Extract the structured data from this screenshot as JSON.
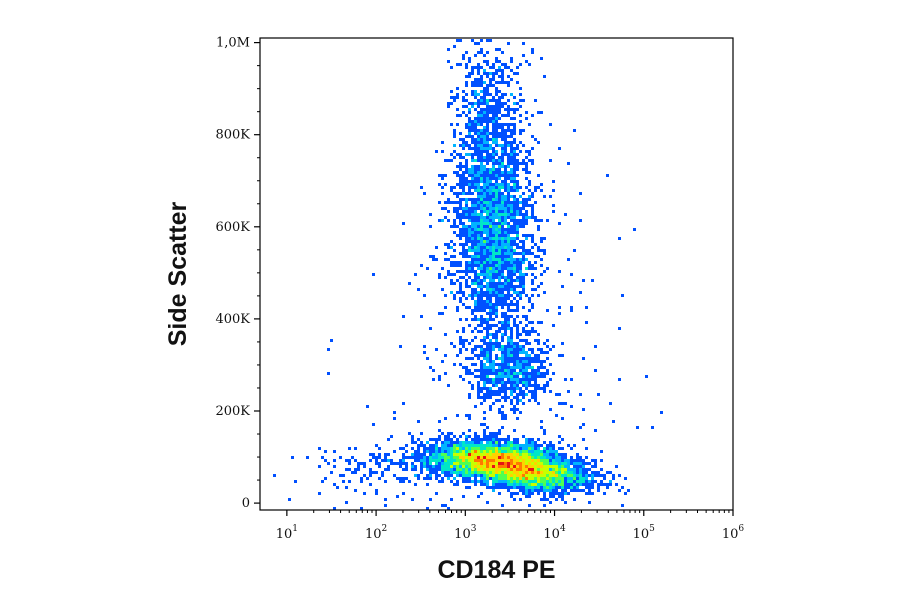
{
  "chart_data": {
    "type": "heatmap",
    "title": "",
    "xlabel": "CD184 PE",
    "ylabel": "Side Scatter",
    "x_scale": "log",
    "xlim": [
      5,
      1000000
    ],
    "ylim": [
      -15000,
      1010000
    ],
    "x_ticks": [
      {
        "value": 10,
        "base": "10",
        "exp": "1"
      },
      {
        "value": 100,
        "base": "10",
        "exp": "2"
      },
      {
        "value": 1000,
        "base": "10",
        "exp": "3"
      },
      {
        "value": 10000,
        "base": "10",
        "exp": "4"
      },
      {
        "value": 100000,
        "base": "10",
        "exp": "5"
      },
      {
        "value": 1000000,
        "base": "10",
        "exp": "6"
      }
    ],
    "y_ticks": [
      {
        "value": 0,
        "label": "0"
      },
      {
        "value": 200000,
        "label": "200K"
      },
      {
        "value": 400000,
        "label": "400K"
      },
      {
        "value": 600000,
        "label": "600K"
      },
      {
        "value": 800000,
        "label": "800K"
      },
      {
        "value": 1000000,
        "label": "1,0M"
      }
    ],
    "grid": false,
    "legend": "none",
    "colormap": [
      "#0000c8",
      "#0050ff",
      "#00b4ff",
      "#00e6c8",
      "#50ff50",
      "#c8ff00",
      "#ffd200",
      "#ff7800",
      "#e61414"
    ],
    "populations": [
      {
        "x": 5500,
        "y": 65000,
        "count": 2400
      },
      {
        "x": 1800,
        "y": 95000,
        "count": 2600
      },
      {
        "x": 3000,
        "y": 90000,
        "count": 1400
      },
      {
        "x": 3000,
        "y": 290000,
        "count": 700
      },
      {
        "x": 2000,
        "y": 600000,
        "count": 2800
      },
      {
        "x": 1800,
        "y": 860000,
        "count": 500
      },
      {
        "x": 400,
        "y": 90000,
        "count": 250
      },
      {
        "x": 100,
        "y": 45000,
        "count": 60
      }
    ]
  }
}
